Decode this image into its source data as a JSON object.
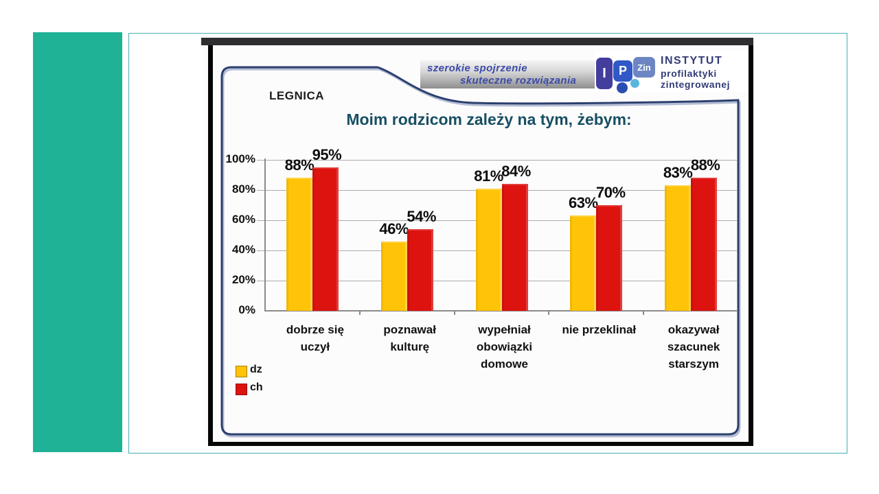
{
  "accent": {
    "bar_color": "#1fb296"
  },
  "slide": {
    "region_label": "LEGNICA",
    "banner": {
      "line1": "szerokie spojrzenie",
      "line2": "skuteczne rozwiązania"
    },
    "logo": {
      "piece1": "I",
      "piece2": "P",
      "piece3": "Zin",
      "name_line1": "INSTYTUT",
      "name_line2": "profilaktyki",
      "name_line3": "zintegrowanej"
    }
  },
  "chart_data": {
    "type": "bar",
    "title": "Moim rodzicom zależy na tym, żebym:",
    "categories": [
      [
        "dobrze się",
        "uczył"
      ],
      [
        "poznawał",
        "kulturę"
      ],
      [
        "wypełniał",
        "obowiązki",
        "domowe"
      ],
      [
        "nie przeklinał"
      ],
      [
        "okazywał",
        "szacunek",
        "starszym"
      ]
    ],
    "series": [
      {
        "name": "dz",
        "color": "#ffc408",
        "values": [
          88,
          46,
          81,
          63,
          83
        ]
      },
      {
        "name": "ch",
        "color": "#dd1310",
        "values": [
          95,
          54,
          84,
          70,
          88
        ]
      }
    ],
    "value_suffix": "%",
    "y_ticks": [
      "0%",
      "20%",
      "40%",
      "60%",
      "80%",
      "100%"
    ],
    "ylim": [
      0,
      100
    ],
    "grid": true,
    "legend_position": "bottom-left",
    "xlabel": "",
    "ylabel": ""
  }
}
